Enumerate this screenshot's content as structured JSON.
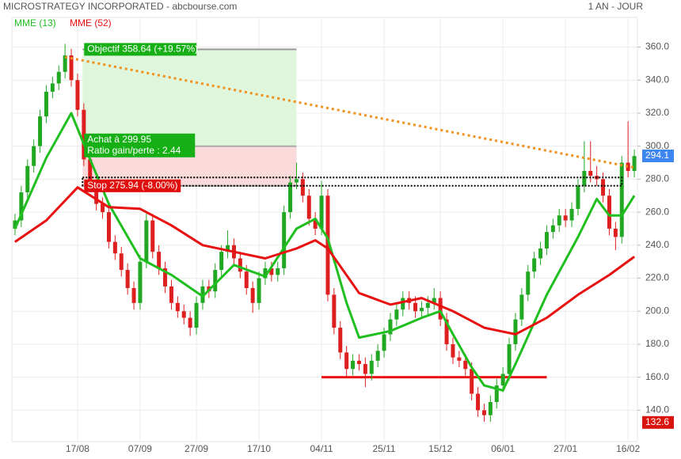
{
  "chart_data": {
    "type": "candlestick",
    "title": "MICROSTRATEGY INCORPORATED - abcbourse.com",
    "period": "1 AN - JOUR",
    "categories": [
      null,
      null,
      null,
      null,
      null,
      null,
      null,
      null,
      null,
      null,
      "17/08",
      null,
      null,
      null,
      null,
      null,
      null,
      null,
      null,
      null,
      "07/09",
      null,
      null,
      null,
      null,
      null,
      null,
      null,
      null,
      "27/09",
      null,
      null,
      null,
      null,
      null,
      null,
      null,
      null,
      null,
      "17/10",
      null,
      null,
      null,
      null,
      null,
      null,
      null,
      null,
      null,
      "04/11",
      null,
      null,
      null,
      null,
      null,
      null,
      null,
      null,
      null,
      "25/11",
      null,
      null,
      null,
      null,
      null,
      null,
      null,
      null,
      "15/12",
      null,
      null,
      null,
      null,
      null,
      null,
      null,
      null,
      null,
      "06/01",
      null,
      null,
      null,
      null,
      null,
      null,
      null,
      null,
      null,
      "27/01",
      null,
      null,
      null,
      null,
      null,
      null,
      null,
      null,
      null,
      "16/02",
      null
    ],
    "open": [
      250,
      255,
      272,
      288,
      300,
      318,
      333,
      338,
      345,
      355,
      340,
      322,
      292,
      276,
      265,
      260,
      242,
      235,
      225,
      214,
      205,
      230,
      255,
      236,
      226,
      215,
      205,
      200,
      196,
      190,
      205,
      215,
      212,
      225,
      236,
      240,
      232,
      224,
      214,
      205,
      220,
      226,
      222,
      226,
      260,
      278,
      280,
      270,
      256,
      250,
      270,
      210,
      190,
      175,
      165,
      170,
      168,
      162,
      170,
      176,
      186,
      195,
      201,
      208,
      205,
      200,
      202,
      205,
      208,
      195,
      180,
      172,
      170,
      165,
      150,
      140,
      137,
      145,
      155,
      162,
      180,
      195,
      210,
      224,
      232,
      238,
      248,
      252,
      258,
      255,
      262,
      276,
      285,
      282,
      280,
      270,
      250,
      245,
      290,
      285
    ],
    "high": [
      259,
      276,
      292,
      304,
      322,
      337,
      342,
      349,
      362,
      359,
      344,
      326,
      296,
      280,
      269,
      264,
      246,
      239,
      229,
      218,
      234,
      259,
      259,
      240,
      230,
      219,
      209,
      204,
      200,
      209,
      219,
      219,
      229,
      240,
      249,
      244,
      236,
      228,
      218,
      224,
      230,
      230,
      230,
      264,
      282,
      290,
      284,
      274,
      260,
      279,
      274,
      214,
      194,
      179,
      174,
      174,
      172,
      174,
      180,
      190,
      199,
      205,
      212,
      212,
      209,
      206,
      209,
      214,
      212,
      199,
      184,
      176,
      174,
      169,
      154,
      144,
      149,
      159,
      166,
      184,
      199,
      214,
      228,
      236,
      242,
      252,
      256,
      262,
      262,
      266,
      280,
      303,
      303,
      288,
      284,
      274,
      254,
      294,
      315,
      298
    ],
    "low": [
      246,
      251,
      268,
      284,
      296,
      314,
      329,
      334,
      341,
      336,
      318,
      288,
      272,
      261,
      256,
      238,
      231,
      221,
      210,
      201,
      201,
      226,
      232,
      222,
      211,
      201,
      196,
      192,
      185,
      186,
      201,
      208,
      208,
      221,
      232,
      228,
      220,
      210,
      199,
      201,
      216,
      218,
      218,
      222,
      256,
      274,
      266,
      252,
      246,
      246,
      206,
      186,
      171,
      160,
      161,
      164,
      154,
      158,
      166,
      172,
      182,
      191,
      197,
      201,
      196,
      196,
      198,
      201,
      191,
      176,
      168,
      166,
      161,
      146,
      136,
      133,
      133,
      141,
      151,
      158,
      176,
      191,
      206,
      220,
      228,
      234,
      244,
      248,
      251,
      251,
      258,
      272,
      278,
      276,
      266,
      246,
      237,
      241,
      281,
      281
    ],
    "close": [
      255,
      272,
      288,
      300,
      318,
      333,
      338,
      345,
      355,
      340,
      322,
      292,
      276,
      265,
      260,
      242,
      235,
      225,
      214,
      205,
      230,
      255,
      236,
      226,
      215,
      205,
      200,
      196,
      190,
      205,
      215,
      212,
      225,
      236,
      240,
      232,
      224,
      214,
      205,
      220,
      226,
      222,
      226,
      260,
      278,
      280,
      270,
      256,
      250,
      270,
      210,
      190,
      175,
      165,
      170,
      168,
      162,
      170,
      176,
      186,
      195,
      201,
      208,
      205,
      200,
      202,
      205,
      208,
      195,
      180,
      172,
      170,
      165,
      150,
      140,
      137,
      145,
      155,
      162,
      180,
      195,
      210,
      224,
      232,
      238,
      248,
      252,
      258,
      255,
      262,
      276,
      285,
      282,
      280,
      270,
      250,
      245,
      290,
      285,
      294
    ],
    "up_color": "#22a722",
    "down_color": "#dd1f1f",
    "series": [
      {
        "name": "MME (13)",
        "color": "#1fbf1f",
        "x": [
          0,
          5,
          9,
          12,
          15,
          20,
          25,
          30,
          35,
          40,
          45,
          48,
          50,
          53,
          55,
          60,
          65,
          68,
          70,
          73,
          75,
          78,
          80,
          85,
          90,
          93,
          95,
          97,
          99
        ],
        "values": [
          250,
          293,
          320,
          292,
          265,
          232,
          222,
          209,
          228,
          221,
          250,
          256,
          244,
          205,
          184,
          188,
          196,
          200,
          186,
          166,
          155,
          152,
          168,
          210,
          245,
          268,
          258,
          258,
          270
        ]
      },
      {
        "name": "MME (52)",
        "color": "#e81010",
        "x": [
          0,
          5,
          10,
          15,
          20,
          25,
          30,
          35,
          40,
          45,
          48,
          50,
          55,
          60,
          65,
          70,
          75,
          80,
          85,
          90,
          95,
          99
        ],
        "values": [
          242,
          255,
          275,
          263,
          262,
          252,
          240,
          236,
          232,
          238,
          243,
          238,
          211,
          204,
          208,
          200,
          190,
          186,
          196,
          210,
          222,
          233
        ]
      }
    ],
    "trend_line": {
      "color": "#f0901e",
      "x": [
        8,
        99
      ],
      "values": [
        354,
        287
      ]
    },
    "support_line": {
      "color": "#ee1111",
      "x": [
        49,
        85
      ],
      "value": 160
    },
    "position": {
      "x": [
        10.8,
        45
      ],
      "target": {
        "value": 358.64,
        "label": "Objectif 358.64 (+19.57%)"
      },
      "entry": {
        "value": 299.95,
        "label": "Achat à 299.95"
      },
      "ratio": {
        "value": 2.44,
        "label": "Ratio gain/perte : 2.44"
      },
      "stop": {
        "value": 275.94,
        "label": "Stop 275.94 (-8.00%)"
      }
    },
    "range_box": {
      "x": [
        10.8,
        97
      ],
      "values": [
        276,
        281
      ]
    },
    "price_tags": [
      {
        "value": 294.1,
        "color": "#3d86f0"
      },
      {
        "value": 132.6,
        "color": "#d9140f"
      }
    ],
    "ylim": [
      121,
      378
    ],
    "yticks": [
      {
        "value": 140,
        "label": "140.0"
      },
      {
        "value": 160,
        "label": "160.0"
      },
      {
        "value": 180,
        "label": "180.0"
      },
      {
        "value": 200,
        "label": "200.0"
      },
      {
        "value": 220,
        "label": "220.0"
      },
      {
        "value": 240,
        "label": "240.0"
      },
      {
        "value": 260,
        "label": "260.0"
      },
      {
        "value": 280,
        "label": "280.0"
      },
      {
        "value": 300,
        "label": "300.0"
      },
      {
        "value": 320,
        "label": "320.0"
      },
      {
        "value": 340,
        "label": "340.0"
      },
      {
        "value": 360,
        "label": "360.0"
      }
    ],
    "grid": true
  }
}
